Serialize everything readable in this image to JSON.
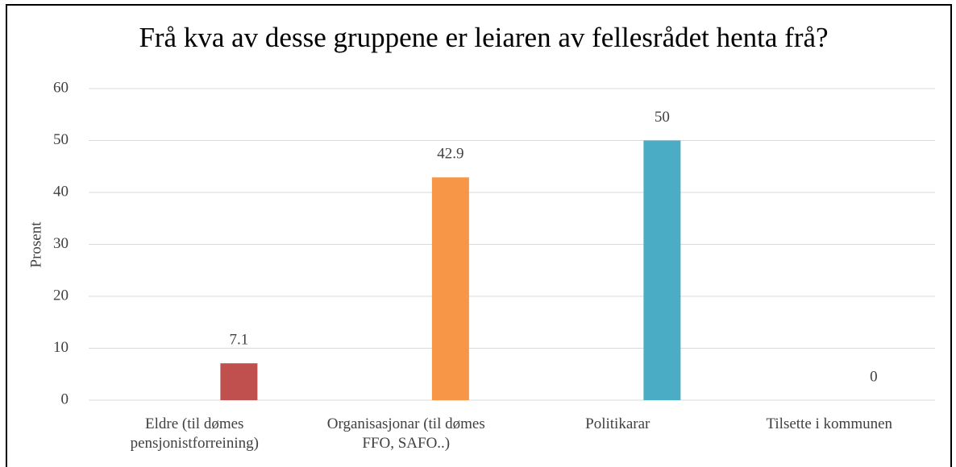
{
  "chart_data": {
    "type": "bar",
    "title": "Frå kva av desse gruppene er leiaren av fellesrådet henta frå?",
    "ylabel": "Prosent",
    "categories": [
      "Eldre (til dømes pensjonistforreining)",
      "Organisasjonar (til dømes FFO, SAFO..)",
      "Politikarar",
      "Tilsette i kommunen"
    ],
    "values": [
      7.1,
      42.9,
      50,
      0
    ],
    "colors": [
      "#c0504d",
      "#f79646",
      "#4bacc6",
      "#9bbb59"
    ],
    "ylim": [
      0,
      60
    ],
    "yticks": [
      0,
      10,
      20,
      30,
      40,
      50,
      60
    ],
    "grid": true
  }
}
